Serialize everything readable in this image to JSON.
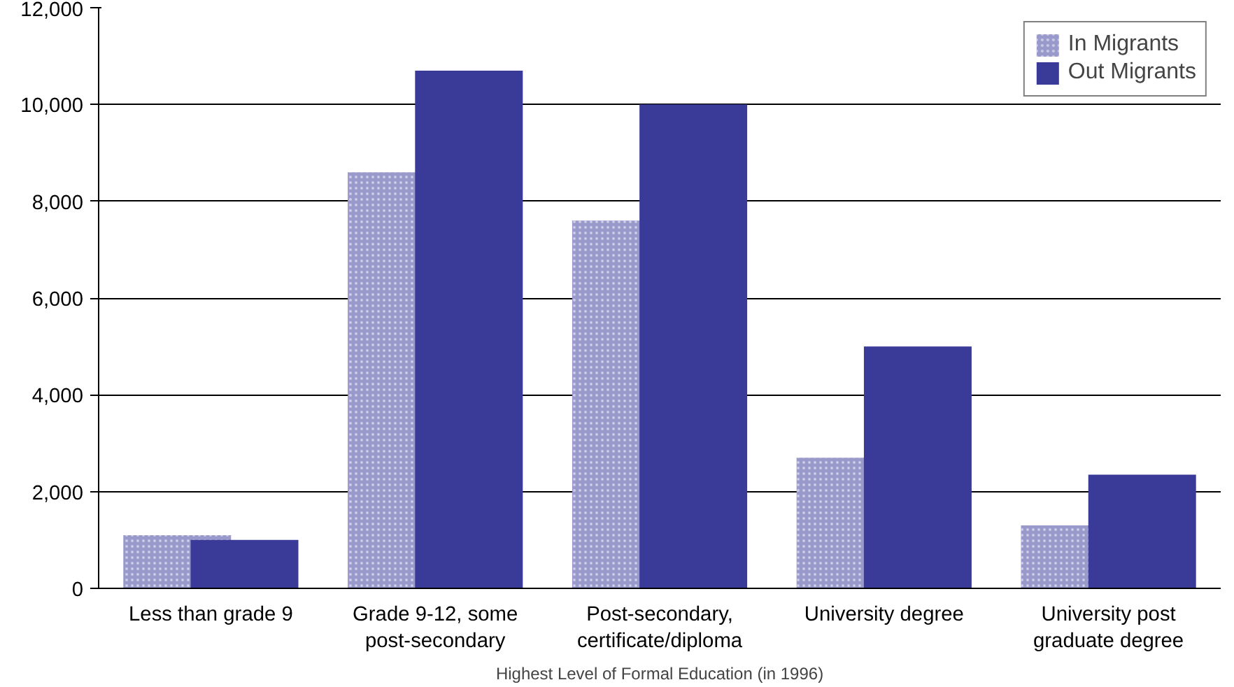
{
  "chart_data": {
    "type": "bar",
    "xlabel": "Highest Level of Formal Education (in 1996)",
    "categories": [
      "Less than grade 9",
      "Grade 9-12, some post-secondary",
      "Post-secondary, certificate/diploma",
      "University degree",
      "University post graduate degree"
    ],
    "series": [
      {
        "name": "In Migrants",
        "color": "#9999cc",
        "values": [
          1100,
          8600,
          7600,
          2700,
          1300
        ]
      },
      {
        "name": "Out Migrants",
        "color": "#3a3a99",
        "values": [
          1000,
          10700,
          10000,
          5000,
          2350
        ]
      }
    ],
    "ylim": [
      0,
      12000
    ],
    "yticks": [
      {
        "value": 0,
        "label": "0"
      },
      {
        "value": 2000,
        "label": "2,000"
      },
      {
        "value": 4000,
        "label": "4,000"
      },
      {
        "value": 6000,
        "label": "6,000"
      },
      {
        "value": 8000,
        "label": "8,000"
      },
      {
        "value": 10000,
        "label": "10,000"
      },
      {
        "value": 12000,
        "label": "12,000"
      }
    ],
    "grid": "y",
    "legend": "top right"
  }
}
